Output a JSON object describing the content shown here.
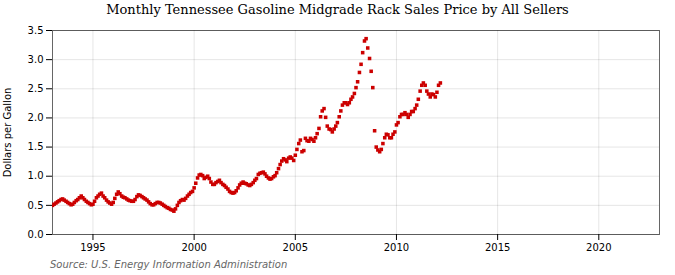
{
  "chart_data": {
    "type": "scatter",
    "title": "Monthly Tennessee Gasoline Midgrade Rack Sales Price by All Sellers",
    "ylabel": "Dollars per Gallon",
    "annotations": [
      "Source: U.S. Energy Information Administration"
    ],
    "color": "#cc0000",
    "marker": "square",
    "grid": true,
    "xlim": [
      1993.0,
      2023.0
    ],
    "ylim": [
      0.0,
      3.5
    ],
    "xticks": [
      1995,
      2000,
      2005,
      2010,
      2015,
      2020
    ],
    "yticks": [
      {
        "value": 0.0,
        "label": "0.0"
      },
      0.5,
      {
        "value": 1.0,
        "label": "1.0"
      },
      1.5,
      {
        "value": 2.0,
        "label": "2.0"
      },
      2.5,
      {
        "value": 3.0,
        "label": "3.0"
      },
      3.5
    ],
    "x": [
      1993.0,
      1993.08,
      1993.17,
      1993.25,
      1993.33,
      1993.42,
      1993.5,
      1993.58,
      1993.67,
      1993.75,
      1993.83,
      1993.92,
      1994.0,
      1994.08,
      1994.17,
      1994.25,
      1994.33,
      1994.42,
      1994.5,
      1994.58,
      1994.67,
      1994.75,
      1994.83,
      1994.92,
      1995.0,
      1995.08,
      1995.17,
      1995.25,
      1995.33,
      1995.42,
      1995.5,
      1995.58,
      1995.67,
      1995.75,
      1995.83,
      1995.92,
      1996.0,
      1996.08,
      1996.17,
      1996.25,
      1996.33,
      1996.42,
      1996.5,
      1996.58,
      1996.67,
      1996.75,
      1996.83,
      1996.92,
      1997.0,
      1997.08,
      1997.17,
      1997.25,
      1997.33,
      1997.42,
      1997.5,
      1997.58,
      1997.67,
      1997.75,
      1997.83,
      1997.92,
      1998.0,
      1998.08,
      1998.17,
      1998.25,
      1998.33,
      1998.42,
      1998.5,
      1998.58,
      1998.67,
      1998.75,
      1998.83,
      1998.92,
      1999.0,
      1999.08,
      1999.17,
      1999.25,
      1999.33,
      1999.42,
      1999.5,
      1999.58,
      1999.67,
      1999.75,
      1999.83,
      1999.92,
      2000.0,
      2000.08,
      2000.17,
      2000.25,
      2000.33,
      2000.42,
      2000.5,
      2000.58,
      2000.67,
      2000.75,
      2000.83,
      2000.92,
      2001.0,
      2001.08,
      2001.17,
      2001.25,
      2001.33,
      2001.42,
      2001.5,
      2001.58,
      2001.67,
      2001.75,
      2001.83,
      2001.92,
      2002.0,
      2002.08,
      2002.17,
      2002.25,
      2002.33,
      2002.42,
      2002.5,
      2002.58,
      2002.67,
      2002.75,
      2002.83,
      2002.92,
      2003.0,
      2003.08,
      2003.17,
      2003.25,
      2003.33,
      2003.42,
      2003.5,
      2003.58,
      2003.67,
      2003.75,
      2003.83,
      2003.92,
      2004.0,
      2004.08,
      2004.17,
      2004.25,
      2004.33,
      2004.42,
      2004.5,
      2004.58,
      2004.67,
      2004.75,
      2004.83,
      2004.92,
      2005.0,
      2005.08,
      2005.17,
      2005.25,
      2005.33,
      2005.42,
      2005.5,
      2005.58,
      2005.67,
      2005.75,
      2005.83,
      2005.92,
      2006.0,
      2006.08,
      2006.17,
      2006.25,
      2006.33,
      2006.42,
      2006.5,
      2006.58,
      2006.67,
      2006.75,
      2006.83,
      2006.92,
      2007.0,
      2007.08,
      2007.17,
      2007.25,
      2007.33,
      2007.42,
      2007.5,
      2007.58,
      2007.67,
      2007.75,
      2007.83,
      2007.92,
      2008.0,
      2008.08,
      2008.17,
      2008.25,
      2008.33,
      2008.42,
      2008.5,
      2008.58,
      2008.67,
      2008.75,
      2008.83,
      2008.92,
      2009.0,
      2009.08,
      2009.17,
      2009.25,
      2009.33,
      2009.42,
      2009.5,
      2009.58,
      2009.67,
      2009.75,
      2009.83,
      2009.92,
      2010.0,
      2010.08,
      2010.17,
      2010.25,
      2010.33,
      2010.42,
      2010.5,
      2010.58,
      2010.67,
      2010.75,
      2010.83,
      2010.92,
      2011.0,
      2011.08,
      2011.17,
      2011.25,
      2011.33,
      2011.42,
      2011.5,
      2011.58,
      2011.67,
      2011.75,
      2011.83,
      2011.92,
      2012.0,
      2012.08,
      2012.17
    ],
    "values": [
      0.5,
      0.52,
      0.54,
      0.56,
      0.58,
      0.6,
      0.61,
      0.59,
      0.57,
      0.55,
      0.53,
      0.51,
      0.52,
      0.55,
      0.58,
      0.6,
      0.63,
      0.66,
      0.63,
      0.6,
      0.57,
      0.55,
      0.53,
      0.51,
      0.52,
      0.57,
      0.63,
      0.66,
      0.69,
      0.71,
      0.66,
      0.63,
      0.59,
      0.56,
      0.54,
      0.52,
      0.55,
      0.62,
      0.69,
      0.73,
      0.7,
      0.66,
      0.64,
      0.63,
      0.61,
      0.59,
      0.58,
      0.57,
      0.57,
      0.6,
      0.65,
      0.68,
      0.67,
      0.65,
      0.63,
      0.61,
      0.59,
      0.56,
      0.53,
      0.51,
      0.51,
      0.53,
      0.55,
      0.55,
      0.54,
      0.52,
      0.5,
      0.48,
      0.46,
      0.45,
      0.43,
      0.42,
      0.4,
      0.44,
      0.5,
      0.55,
      0.58,
      0.6,
      0.59,
      0.62,
      0.66,
      0.69,
      0.72,
      0.74,
      0.8,
      0.88,
      0.97,
      1.02,
      1.03,
      1.01,
      0.96,
      0.98,
      1.0,
      0.96,
      0.9,
      0.86,
      0.86,
      0.89,
      0.91,
      0.93,
      0.89,
      0.86,
      0.84,
      0.81,
      0.78,
      0.74,
      0.72,
      0.71,
      0.72,
      0.75,
      0.8,
      0.85,
      0.88,
      0.9,
      0.88,
      0.87,
      0.85,
      0.84,
      0.86,
      0.89,
      0.93,
      0.96,
      1.03,
      1.05,
      1.06,
      1.07,
      1.04,
      1.0,
      0.97,
      0.95,
      0.96,
      0.99,
      1.01,
      1.06,
      1.13,
      1.2,
      1.26,
      1.3,
      1.28,
      1.25,
      1.31,
      1.33,
      1.31,
      1.27,
      1.36,
      1.46,
      1.56,
      1.62,
      1.42,
      1.44,
      1.65,
      1.61,
      1.6,
      1.65,
      1.63,
      1.6,
      1.66,
      1.73,
      1.82,
      2.02,
      2.12,
      2.16,
      2.01,
      1.86,
      1.81,
      1.8,
      1.76,
      1.81,
      1.86,
      1.92,
      2.02,
      2.12,
      2.22,
      2.26,
      2.26,
      2.23,
      2.26,
      2.32,
      2.36,
      2.42,
      2.52,
      2.62,
      2.78,
      2.92,
      3.12,
      3.32,
      3.36,
      3.2,
      3.02,
      2.8,
      2.52,
      1.78,
      1.5,
      1.45,
      1.42,
      1.46,
      1.56,
      1.66,
      1.72,
      1.71,
      1.66,
      1.66,
      1.72,
      1.76,
      1.88,
      1.92,
      2.02,
      2.06,
      2.06,
      2.09,
      2.06,
      2.01,
      2.06,
      2.11,
      2.11,
      2.16,
      2.22,
      2.32,
      2.46,
      2.56,
      2.6,
      2.56,
      2.46,
      2.41,
      2.36,
      2.41,
      2.4,
      2.36,
      2.44,
      2.56,
      2.6
    ]
  }
}
